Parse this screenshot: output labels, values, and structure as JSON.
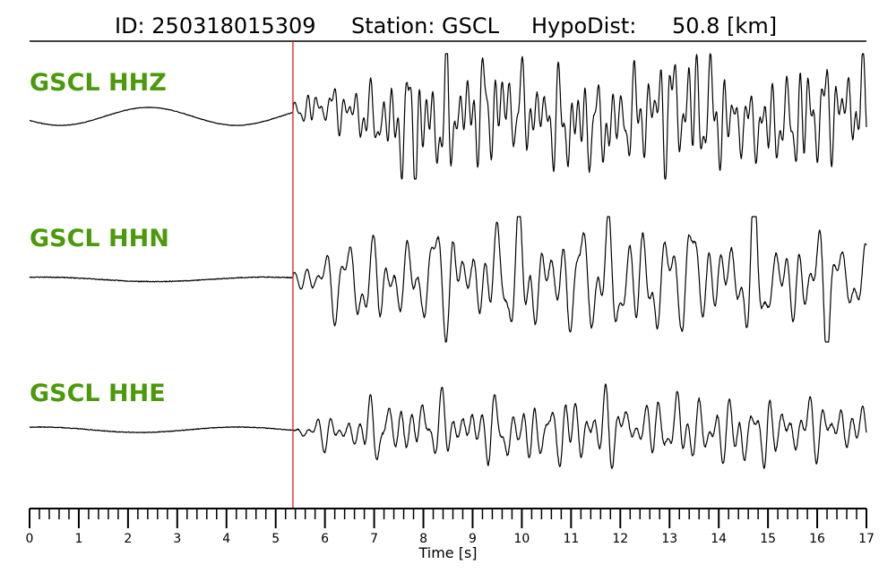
{
  "header": {
    "id_label": "ID: 250318015309",
    "station_label": "Station: GSCL",
    "hypodist_label": "HypoDist:",
    "hypodist_value": "50.8 [km]"
  },
  "colors": {
    "trace": "#000000",
    "label": "#4a9a0a",
    "pick_line": "#e8191e"
  },
  "chart_data": {
    "type": "line",
    "xlabel": "Time [s]",
    "xlim": [
      0,
      17
    ],
    "major_ticks": [
      0,
      1,
      2,
      3,
      4,
      5,
      6,
      7,
      8,
      9,
      10,
      11,
      12,
      13,
      14,
      15,
      16,
      17
    ],
    "minor_tick_step": 0.2,
    "p_pick_time": 5.35,
    "series": [
      {
        "name": "GSCL HHZ",
        "amplitude_level": 1.0
      },
      {
        "name": "GSCL HHN",
        "amplitude_level": 1.0
      },
      {
        "name": "GSCL HHE",
        "amplitude_level": 1.0
      }
    ]
  }
}
